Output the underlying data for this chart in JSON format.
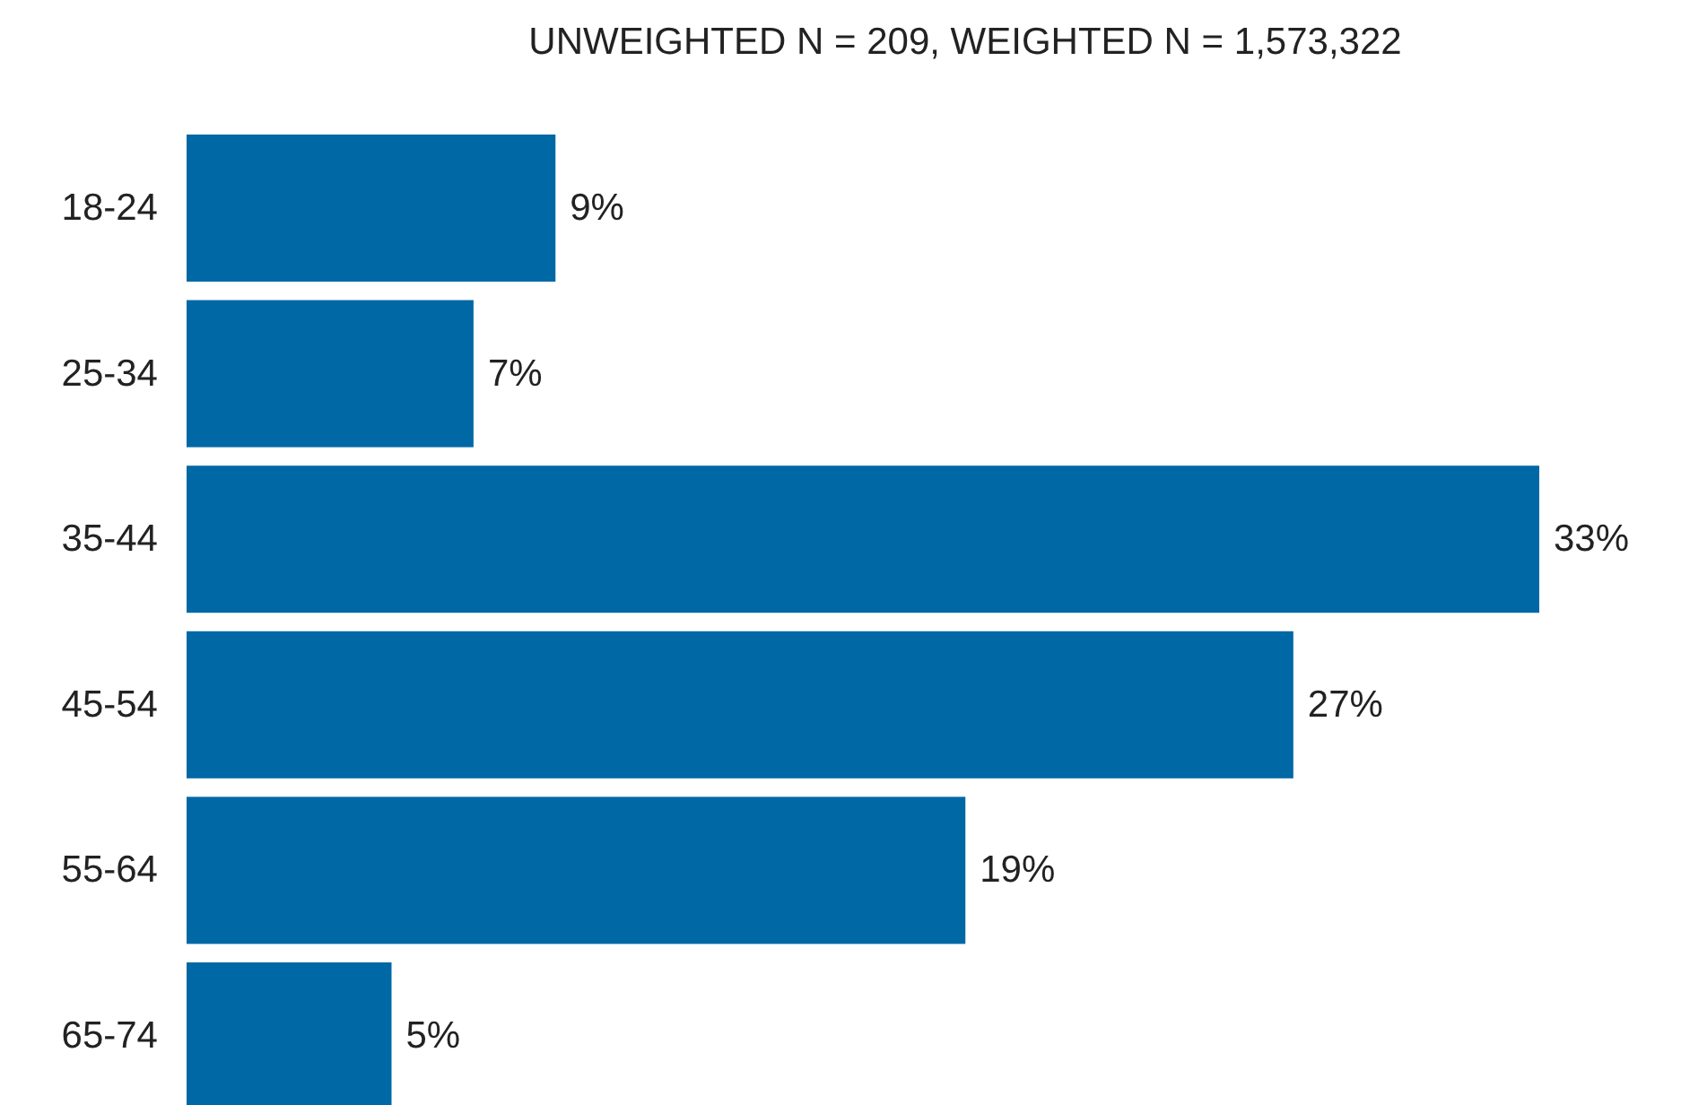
{
  "chart_data": {
    "type": "bar",
    "orientation": "horizontal",
    "title": "UNWEIGHTED N = 209, WEIGHTED N = 1,573,322",
    "categories": [
      "18-24",
      "25-34",
      "35-44",
      "45-54",
      "55-64",
      "65-74"
    ],
    "values": [
      9,
      7,
      33,
      27,
      19,
      5
    ],
    "value_labels": [
      "9%",
      "7%",
      "33%",
      "27%",
      "19%",
      "5%"
    ],
    "color": "#0068a5"
  }
}
